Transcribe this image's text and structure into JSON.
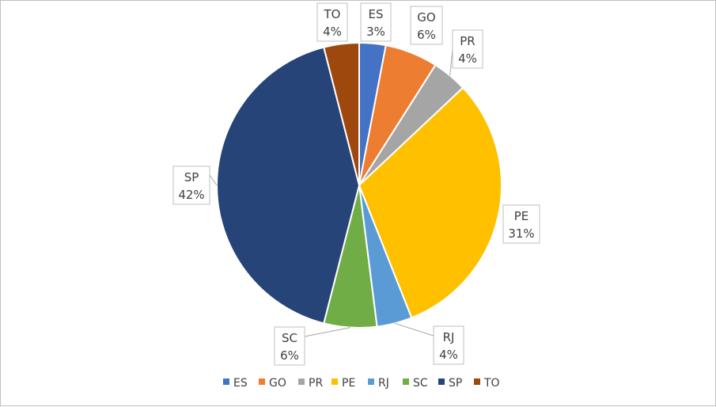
{
  "chart_data": {
    "type": "pie",
    "title": "",
    "legend_position": "bottom",
    "slices": [
      {
        "label": "ES",
        "value": 3,
        "display": "3%",
        "color": "#4472C4"
      },
      {
        "label": "GO",
        "value": 6,
        "display": "6%",
        "color": "#ED7D31"
      },
      {
        "label": "PR",
        "value": 4,
        "display": "4%",
        "color": "#A5A5A5"
      },
      {
        "label": "PE",
        "value": 31,
        "display": "31%",
        "color": "#FFC000"
      },
      {
        "label": "RJ",
        "value": 4,
        "display": "4%",
        "color": "#5B9BD5"
      },
      {
        "label": "SC",
        "value": 6,
        "display": "6%",
        "color": "#70AD47"
      },
      {
        "label": "SP",
        "value": 42,
        "display": "42%",
        "color": "#264478"
      },
      {
        "label": "TO",
        "value": 4,
        "display": "4%",
        "color": "#9E480E"
      }
    ]
  }
}
